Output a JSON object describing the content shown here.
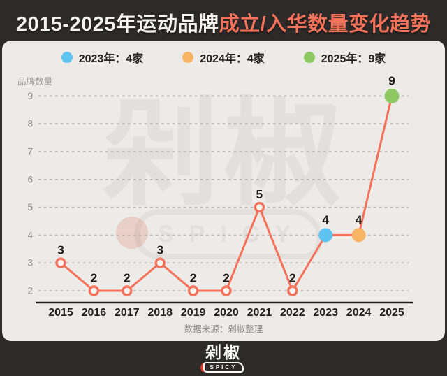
{
  "title": {
    "prefix": "2015-2025年运动品牌",
    "highlight": "成立/入华数量变化趋势"
  },
  "legend": [
    {
      "label": "2023年：4家",
      "color": "#5fc3f1"
    },
    {
      "label": "2024年：4家",
      "color": "#f8b465"
    },
    {
      "label": "2025年：9家",
      "color": "#8dc863"
    }
  ],
  "chart_data": {
    "type": "line",
    "categories": [
      "2015",
      "2016",
      "2017",
      "2018",
      "2019",
      "2020",
      "2021",
      "2022",
      "2023",
      "2024",
      "2025"
    ],
    "values": [
      3,
      2,
      2,
      3,
      2,
      2,
      5,
      2,
      4,
      4,
      9
    ],
    "title": "2015-2025年运动品牌成立/入华数量变化趋势",
    "xlabel": "",
    "ylabel": "品牌数量",
    "ylim": [
      2,
      9
    ],
    "yticks": [
      2,
      3,
      4,
      5,
      6,
      7,
      8,
      9
    ],
    "grid": "dashed horizontal",
    "line_color": "#f4715a",
    "default_point": {
      "fill": "#f6f4f1",
      "stroke": "#f4715a"
    },
    "point_colors": {
      "2023": "#5fc3f1",
      "2024": "#f8b465",
      "2025": "#8dc863"
    },
    "label_color": "#1c1b19",
    "tick_color": "#8f8c88",
    "axis_color": "#1f1e1c"
  },
  "source": "数据来源：剁椒整理",
  "watermark": {
    "text": "剁椒",
    "sub": "SPICY"
  },
  "footer": {
    "logo_text": "剁椒",
    "logo_sub": "SPICY"
  },
  "colors": {
    "background": "#2d2b29",
    "panel": "#edebe8",
    "accent_red": "#f4715a"
  }
}
